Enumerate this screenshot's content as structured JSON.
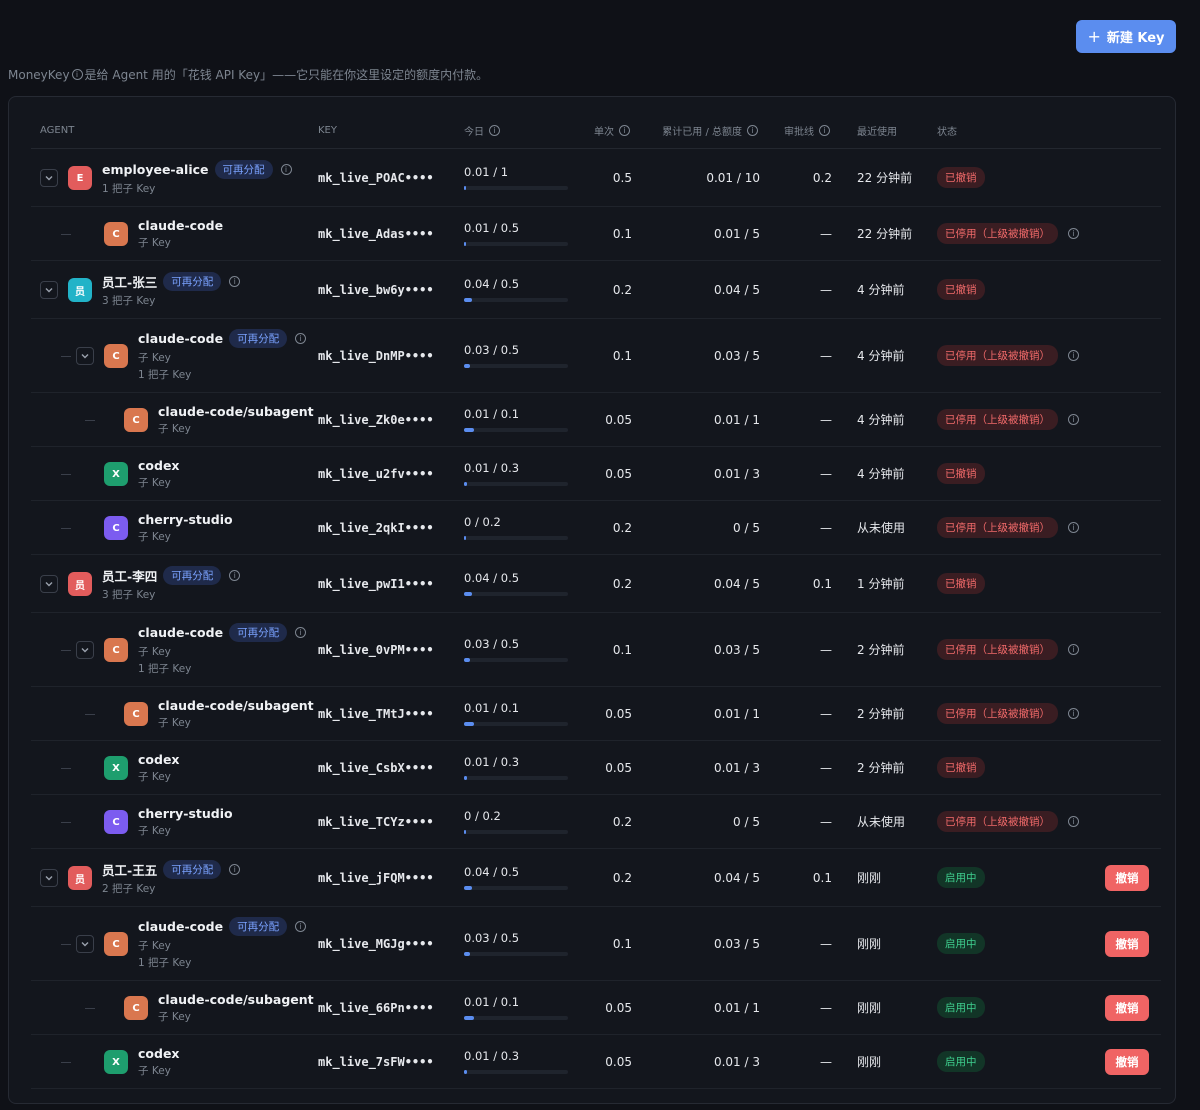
{
  "header": {
    "button": "新建 Key",
    "description": [
      "MoneyKey",
      "是给 Agent 用的「花钱 API Key」——它只能在你这里设定的额度内付款。"
    ]
  },
  "table": {
    "columns": [
      "AGENT",
      "KEY",
      "今日",
      "单次",
      "累计已用 / 总额度",
      "审批线",
      "最近使用",
      "状态"
    ],
    "rows": [
      {
        "avatar": "E",
        "color": "#e25c5c",
        "name": "employee-alice",
        "badge": "可再分配",
        "sub": [
          "1 把子 Key"
        ],
        "key": "mk_live_POAC••••",
        "today": "0.01 / 1",
        "single": "0.5",
        "total": "0.01 / 10",
        "approval": "0.2",
        "last": "22 分钟前",
        "status": "已撤销",
        "tone": "revoked",
        "children": [
          {
            "avatar": "C",
            "color": "#d9774f",
            "name": "claude-code",
            "sub": [
              "子 Key"
            ],
            "key": "mk_live_Adas••••",
            "today": "0.01 / 0.5",
            "single": "0.1",
            "total": "0.01 / 5",
            "approval": "—",
            "last": "22 分钟前",
            "status": "已停用（上级被撤销）",
            "tone": "disabled"
          }
        ]
      },
      {
        "avatar": "员",
        "color": "#22b3c8",
        "name": "员工-张三",
        "badge": "可再分配",
        "sub": [
          "3 把子 Key"
        ],
        "key": "mk_live_bw6y••••",
        "today": "0.04 / 0.5",
        "single": "0.2",
        "total": "0.04 / 5",
        "approval": "—",
        "last": "4 分钟前",
        "status": "已撤销",
        "tone": "revoked",
        "children": [
          {
            "avatar": "C",
            "color": "#d9774f",
            "name": "claude-code",
            "badge": "可再分配",
            "sub": [
              "子 Key",
              "1 把子 Key"
            ],
            "key": "mk_live_DnMP••••",
            "today": "0.03 / 0.5",
            "single": "0.1",
            "total": "0.03 / 5",
            "approval": "—",
            "last": "4 分钟前",
            "status": "已停用（上级被撤销）",
            "tone": "disabled",
            "children": [
              {
                "avatar": "C",
                "color": "#d9774f",
                "name": "claude-code/subagent",
                "sub": [
                  "子 Key"
                ],
                "key": "mk_live_Zk0e••••",
                "today": "0.01 / 0.1",
                "single": "0.05",
                "total": "0.01 / 1",
                "approval": "—",
                "last": "4 分钟前",
                "status": "已停用（上级被撤销）",
                "tone": "disabled"
              }
            ]
          },
          {
            "avatar": "X",
            "color": "#1e9e6e",
            "name": "codex",
            "sub": [
              "子 Key"
            ],
            "key": "mk_live_u2fv••••",
            "today": "0.01 / 0.3",
            "single": "0.05",
            "total": "0.01 / 3",
            "approval": "—",
            "last": "4 分钟前",
            "status": "已撤销",
            "tone": "revoked"
          },
          {
            "avatar": "C",
            "color": "#7c5cf0",
            "name": "cherry-studio",
            "sub": [
              "子 Key"
            ],
            "key": "mk_live_2qkI••••",
            "today": "0 / 0.2",
            "single": "0.2",
            "total": "0 / 5",
            "approval": "—",
            "last": "从未使用",
            "status": "已停用（上级被撤销）",
            "tone": "disabled"
          }
        ]
      },
      {
        "avatar": "员",
        "color": "#e25c5c",
        "name": "员工-李四",
        "badge": "可再分配",
        "sub": [
          "3 把子 Key"
        ],
        "key": "mk_live_pwI1••••",
        "today": "0.04 / 0.5",
        "single": "0.2",
        "total": "0.04 / 5",
        "approval": "0.1",
        "last": "1 分钟前",
        "status": "已撤销",
        "tone": "revoked",
        "children": [
          {
            "avatar": "C",
            "color": "#d9774f",
            "name": "claude-code",
            "badge": "可再分配",
            "sub": [
              "子 Key",
              "1 把子 Key"
            ],
            "key": "mk_live_0vPM••••",
            "today": "0.03 / 0.5",
            "single": "0.1",
            "total": "0.03 / 5",
            "approval": "—",
            "last": "2 分钟前",
            "status": "已停用（上级被撤销）",
            "tone": "disabled",
            "children": [
              {
                "avatar": "C",
                "color": "#d9774f",
                "name": "claude-code/subagent",
                "sub": [
                  "子 Key"
                ],
                "key": "mk_live_TMtJ••••",
                "today": "0.01 / 0.1",
                "single": "0.05",
                "total": "0.01 / 1",
                "approval": "—",
                "last": "2 分钟前",
                "status": "已停用（上级被撤销）",
                "tone": "disabled"
              }
            ]
          },
          {
            "avatar": "X",
            "color": "#1e9e6e",
            "name": "codex",
            "sub": [
              "子 Key"
            ],
            "key": "mk_live_CsbX••••",
            "today": "0.01 / 0.3",
            "single": "0.05",
            "total": "0.01 / 3",
            "approval": "—",
            "last": "2 分钟前",
            "status": "已撤销",
            "tone": "revoked"
          },
          {
            "avatar": "C",
            "color": "#7c5cf0",
            "name": "cherry-studio",
            "sub": [
              "子 Key"
            ],
            "key": "mk_live_TCYz••••",
            "today": "0 / 0.2",
            "single": "0.2",
            "total": "0 / 5",
            "approval": "—",
            "last": "从未使用",
            "status": "已停用（上级被撤销）",
            "tone": "disabled"
          }
        ]
      },
      {
        "avatar": "员",
        "color": "#e25c5c",
        "name": "员工-王五",
        "badge": "可再分配",
        "sub": [
          "2 把子 Key"
        ],
        "key": "mk_live_jFQM••••",
        "today": "0.04 / 0.5",
        "single": "0.2",
        "total": "0.04 / 5",
        "approval": "0.1",
        "last": "刚刚",
        "status": "启用中",
        "tone": "active",
        "action": "撤销",
        "children": [
          {
            "avatar": "C",
            "color": "#d9774f",
            "name": "claude-code",
            "badge": "可再分配",
            "sub": [
              "子 Key",
              "1 把子 Key"
            ],
            "key": "mk_live_MGJg••••",
            "today": "0.03 / 0.5",
            "single": "0.1",
            "total": "0.03 / 5",
            "approval": "—",
            "last": "刚刚",
            "status": "启用中",
            "tone": "active",
            "action": "撤销",
            "children": [
              {
                "avatar": "C",
                "color": "#d9774f",
                "name": "claude-code/subagent",
                "sub": [
                  "子 Key"
                ],
                "key": "mk_live_66Pn••••",
                "today": "0.01 / 0.1",
                "single": "0.05",
                "total": "0.01 / 1",
                "approval": "—",
                "last": "刚刚",
                "status": "启用中",
                "tone": "active",
                "action": "撤销"
              }
            ]
          },
          {
            "avatar": "X",
            "color": "#1e9e6e",
            "name": "codex",
            "sub": [
              "子 Key"
            ],
            "key": "mk_live_7sFW••••",
            "today": "0.01 / 0.3",
            "single": "0.05",
            "total": "0.01 / 3",
            "approval": "—",
            "last": "刚刚",
            "status": "启用中",
            "tone": "active",
            "action": "撤销"
          }
        ]
      }
    ]
  }
}
